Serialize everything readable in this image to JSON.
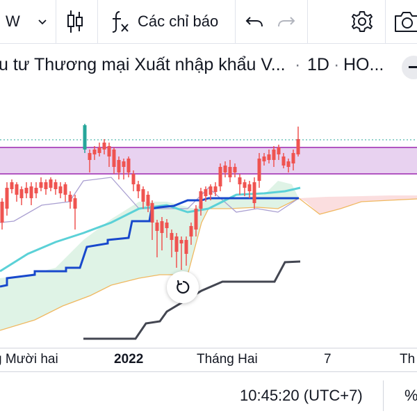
{
  "toolbar": {
    "interval_label": "W",
    "indicators_label": "Các chỉ báo"
  },
  "legend": {
    "symbol_name": "u tư Thương mại Xuất nhập khẩu V...",
    "sep1": "·",
    "interval": "1D",
    "sep2": "·",
    "exchange": "HO..."
  },
  "time_axis": {
    "labels": [
      {
        "text": "g Mười hai",
        "bold": false
      },
      {
        "text": "2022",
        "bold": true
      },
      {
        "text": "Tháng Hai",
        "bold": false
      },
      {
        "text": "7",
        "bold": false
      },
      {
        "text": "Th",
        "bold": false
      }
    ]
  },
  "status": {
    "clock": "10:45:20 (UTC+7)",
    "percent_label": "%"
  },
  "colors": {
    "up": "#26a69a",
    "down": "#ef5350",
    "zone_fill": "#e8d2f0",
    "zone_border": "#9c27b0",
    "cyan_line": "#5bd1d7",
    "blue_line": "#1848cc",
    "lagging_line": "#434651",
    "cloud_green": "#d7f0e0",
    "cloud_red": "#fbdadb"
  }
}
